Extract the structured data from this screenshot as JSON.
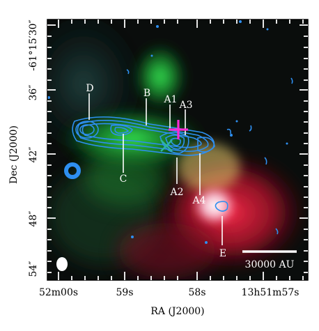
{
  "figure": {
    "axes": {
      "xlabel": "RA (J2000)",
      "ylabel": "Dec (J2000)",
      "x_ticks": [
        "52m00s",
        "59s",
        "58s",
        "13h51m57s"
      ],
      "y_ticks": [
        "-61°15′30″",
        "36″",
        "42″",
        "48″",
        "54″"
      ]
    },
    "source_labels": {
      "A1": "A1",
      "A2": "A2",
      "A3": "A3",
      "A4": "A4",
      "B": "B",
      "C": "C",
      "D": "D",
      "E": "E"
    },
    "scale_bar": {
      "label": "30000 AU"
    },
    "colors": {
      "contour": "#2e8ff0",
      "cross": "#ff2ad4",
      "x_marker": "#2fb5a0",
      "label": "#ffffff",
      "background": "#0a0d0c"
    }
  }
}
